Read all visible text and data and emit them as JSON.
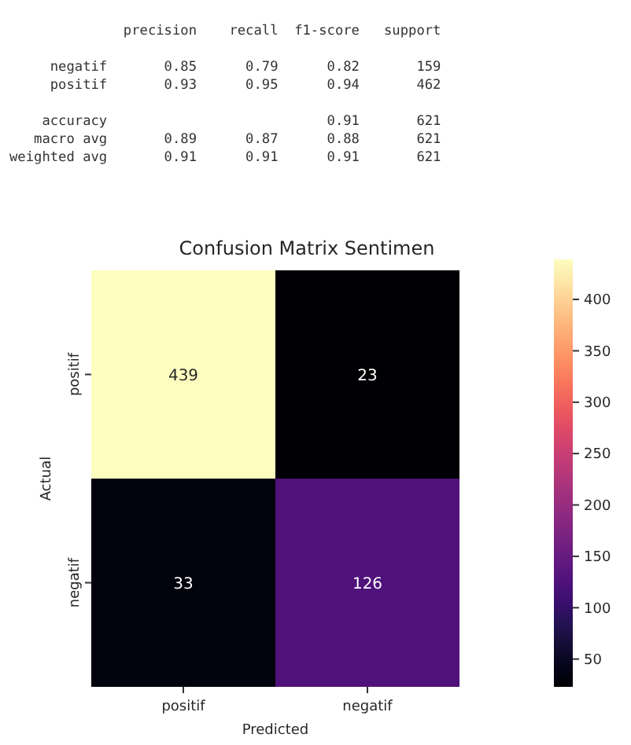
{
  "chart_data": {
    "type": "heatmap",
    "title": "Confusion Matrix Sentimen",
    "xlabel": "Predicted",
    "ylabel": "Actual",
    "categories": [
      "positif",
      "negatif"
    ],
    "y_categories": [
      "positif",
      "negatif"
    ],
    "cells": [
      [
        439,
        23
      ],
      [
        33,
        126
      ]
    ],
    "data_labels": true,
    "clim": [
      23,
      439
    ],
    "cticks": [
      50,
      100,
      150,
      200,
      250,
      300,
      350,
      400
    ],
    "annotations": [
      "              precision    recall  f1-score   support",
      "     negatif       0.85      0.79      0.82       159",
      "     positif       0.93      0.95      0.94       462",
      "    accuracy                           0.91       621",
      "   macro avg       0.89      0.87      0.88       621",
      "weighted avg       0.91      0.91      0.91       621"
    ]
  }
}
